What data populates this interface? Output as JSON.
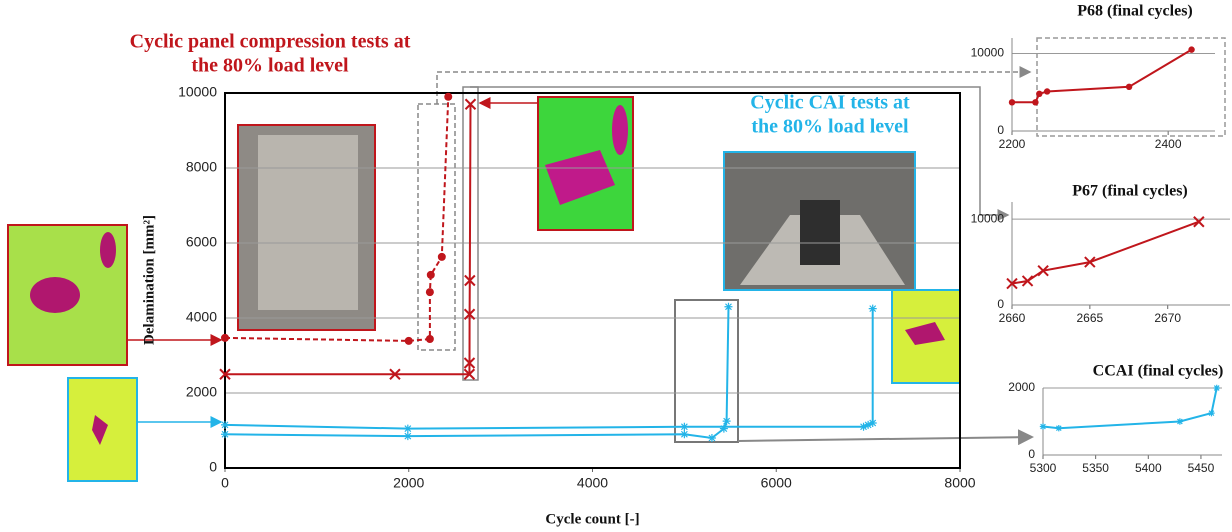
{
  "chart_data": [
    {
      "type": "line",
      "xlabel": "Cycle count [-]",
      "ylabel": "Delamination [mm²]",
      "xlim": [
        0,
        8000
      ],
      "ylim": [
        0,
        10000
      ],
      "xticks": [
        0,
        2000,
        4000,
        6000,
        8000
      ],
      "yticks": [
        0,
        2000,
        4000,
        6000,
        8000,
        10000
      ],
      "grid": true,
      "annotations": [
        {
          "lines": [
            "Cyclic panel compression tests at",
            "the 80% load level"
          ],
          "color": "#c0161c"
        },
        {
          "lines": [
            "Cyclic CAI tests at",
            "the 80% load level"
          ],
          "color": "#23b4e8"
        }
      ],
      "series": [
        {
          "color": "#c0161c",
          "dash": true,
          "marker": "circle",
          "x": [
            0,
            2000,
            2230,
            2230,
            2240,
            2360,
            2430
          ],
          "values": [
            3470,
            3390,
            3440,
            4690,
            5150,
            5630,
            9900
          ]
        },
        {
          "color": "#c0161c",
          "dash": false,
          "marker": "x",
          "x": [
            0,
            1850,
            2660,
            2661,
            2662,
            2665,
            2672
          ],
          "values": [
            2500,
            2500,
            2500,
            2800,
            4100,
            5000,
            9700
          ]
        },
        {
          "color": "#23b4e8",
          "dash": false,
          "marker": "star",
          "x": [
            0,
            1990,
            5000,
            6950,
            7000,
            7050,
            7050
          ],
          "values": [
            1150,
            1050,
            1100,
            1100,
            1150,
            1200,
            4250
          ]
        },
        {
          "color": "#23b4e8",
          "dash": false,
          "marker": "star",
          "x": [
            0,
            1990,
            5000,
            5300,
            5430,
            5460,
            5480
          ],
          "values": [
            900,
            850,
            900,
            800,
            1050,
            1250,
            4300
          ]
        }
      ]
    },
    {
      "type": "line",
      "title": "P68 (final cycles)",
      "xlim": [
        2200,
        2460
      ],
      "ylim": [
        0,
        12000
      ],
      "xticks": [
        2200,
        2400
      ],
      "yticks": [
        0,
        10000
      ],
      "grid": true,
      "series": [
        {
          "color": "#c0161c",
          "dash": false,
          "marker": "circle",
          "x": [
            2200,
            2230,
            2235,
            2245,
            2350,
            2430
          ],
          "values": [
            3700,
            3700,
            4800,
            5100,
            5700,
            10500
          ]
        }
      ]
    },
    {
      "type": "line",
      "title": "P67 (final cycles)",
      "xlim": [
        2660,
        2674
      ],
      "ylim": [
        0,
        12000
      ],
      "xticks": [
        2660,
        2665,
        2670
      ],
      "yticks": [
        0,
        10000
      ],
      "grid": true,
      "series": [
        {
          "color": "#c0161c",
          "dash": false,
          "marker": "x",
          "x": [
            2660,
            2661,
            2662,
            2665,
            2672
          ],
          "values": [
            2500,
            2800,
            4000,
            5000,
            9700
          ]
        }
      ]
    },
    {
      "type": "line",
      "title": "CCAI (final cycles)",
      "xlim": [
        5300,
        5470
      ],
      "ylim": [
        0,
        2000
      ],
      "xticks": [
        5300,
        5350,
        5400,
        5450
      ],
      "yticks": [
        0,
        2000
      ],
      "grid": true,
      "series": [
        {
          "color": "#23b4e8",
          "dash": false,
          "marker": "star",
          "x": [
            5300,
            5315,
            5430,
            5460,
            5465
          ],
          "values": [
            850,
            800,
            1000,
            1250,
            2000
          ]
        }
      ]
    }
  ]
}
